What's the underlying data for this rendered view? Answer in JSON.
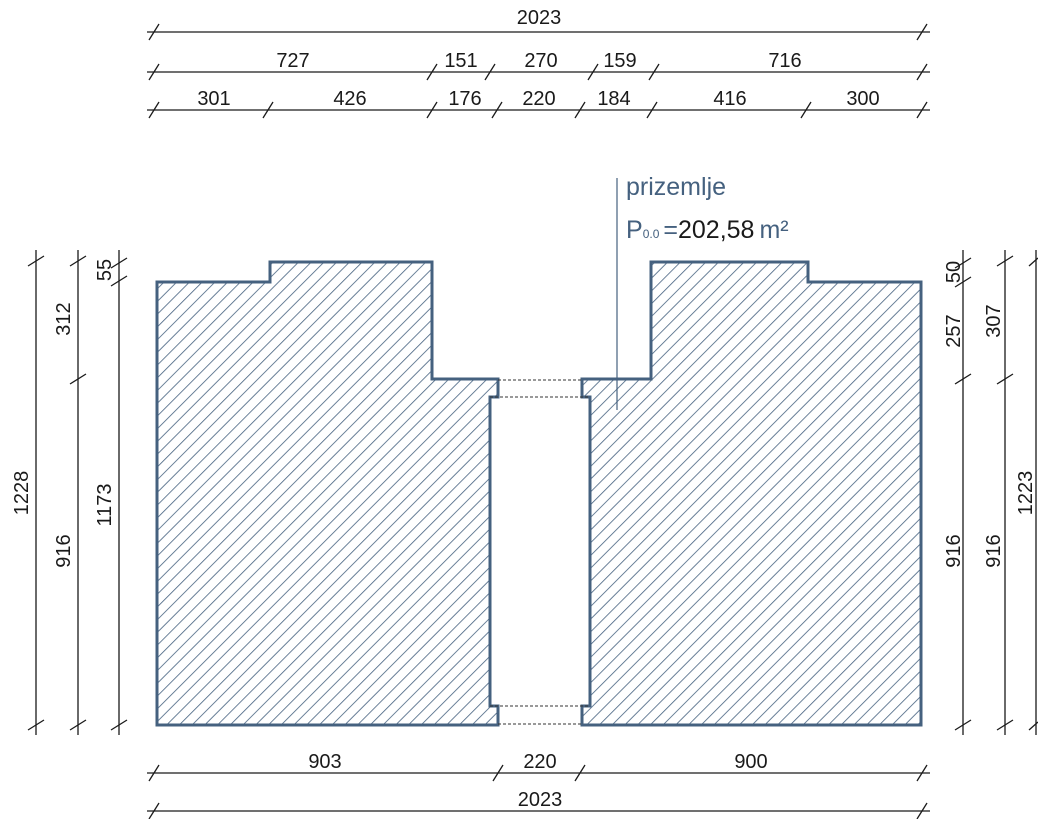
{
  "floor_label": "prizemlje",
  "area_symbol": "P",
  "area_subscript": "0.0",
  "area_equals": "=",
  "area_value": "202,58",
  "area_unit": "m²",
  "colors": {
    "outline": "#45617f",
    "hatch": "#45617f",
    "dimension": "#1a1a1a"
  },
  "top_dims": {
    "overall": "2023",
    "row2": [
      "727",
      "151",
      "270",
      "159",
      "716"
    ],
    "row3": [
      "301",
      "426",
      "176",
      "220",
      "184",
      "416",
      "300"
    ]
  },
  "bottom_dims": {
    "row1": [
      "903",
      "220",
      "900"
    ],
    "overall": "2023"
  },
  "left_dims": {
    "outer": "1228",
    "middle": [
      "916",
      "312"
    ],
    "inner": [
      "1173",
      "55"
    ]
  },
  "right_dims": {
    "inner": [
      "916",
      "257",
      "50"
    ],
    "outer": [
      "916",
      "307",
      "1223"
    ]
  }
}
